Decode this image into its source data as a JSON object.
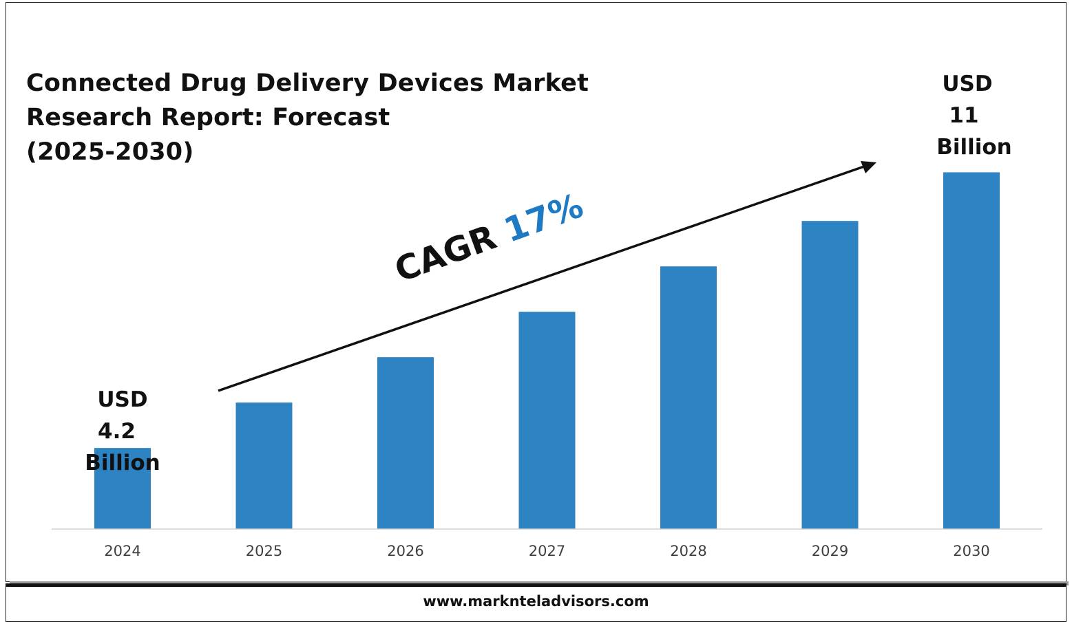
{
  "title": {
    "line1": "Connected Drug Delivery Devices Market",
    "line2": "Research Report: Forecast",
    "line3": "(2025-2030)"
  },
  "cagr": {
    "label": "CAGR",
    "value": "17%"
  },
  "start_label": {
    "line1": "USD",
    "line2": "4.2",
    "line3": "Billion"
  },
  "end_label": {
    "line1": "USD",
    "line2": "11",
    "line3": "Billion"
  },
  "footer": {
    "url": "www.marknteladvisors.com"
  },
  "colors": {
    "bar": "#2e83c3",
    "accent": "#1f7ac4",
    "axis": "#d0d0d0",
    "text": "#111111",
    "tick": "#404040"
  },
  "chart_data": {
    "type": "bar",
    "title": "Connected Drug Delivery Devices Market Research Report: Forecast (2025-2030)",
    "xlabel": "",
    "ylabel": "",
    "categories": [
      "2024",
      "2025",
      "2026",
      "2027",
      "2028",
      "2029",
      "2030"
    ],
    "values": [
      4.2,
      5.32,
      6.44,
      7.56,
      8.68,
      9.8,
      11
    ],
    "ylim": [
      2.2,
      11.5
    ],
    "grid": false,
    "annotations": [
      "USD 4.2 Billion",
      "USD 11 Billion",
      "CAGR 17%"
    ]
  }
}
